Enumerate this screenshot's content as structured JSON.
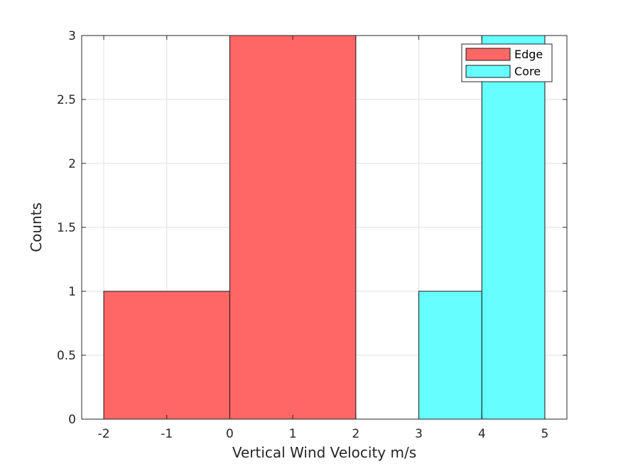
{
  "chart_data": {
    "type": "bar",
    "subtype": "histogram",
    "title": "",
    "xlabel": "Vertical Wind Velocity m/s",
    "ylabel": "Counts",
    "xlim": [
      -2.35,
      5.35
    ],
    "ylim": [
      0,
      3
    ],
    "xticks": [
      -2,
      -1,
      0,
      1,
      2,
      3,
      4,
      5
    ],
    "xtick_labels": [
      "-2",
      "-1",
      "0",
      "1",
      "2",
      "3",
      "4",
      "5"
    ],
    "yticks": [
      0,
      0.5,
      1,
      1.5,
      2,
      2.5,
      3
    ],
    "ytick_labels": [
      "0",
      "0.5",
      "1",
      "1.5",
      "2",
      "2.5",
      "3"
    ],
    "grid": true,
    "legend_position": "top-right",
    "series": [
      {
        "name": "Edge",
        "color": "#ff6666",
        "bins": [
          {
            "x0": -2,
            "x1": 0,
            "count": 1
          },
          {
            "x0": 0,
            "x1": 2,
            "count": 3
          }
        ]
      },
      {
        "name": "Core",
        "color": "#66ffff",
        "bins": [
          {
            "x0": 3,
            "x1": 4,
            "count": 1
          },
          {
            "x0": 4,
            "x1": 5,
            "count": 3
          }
        ]
      }
    ]
  }
}
